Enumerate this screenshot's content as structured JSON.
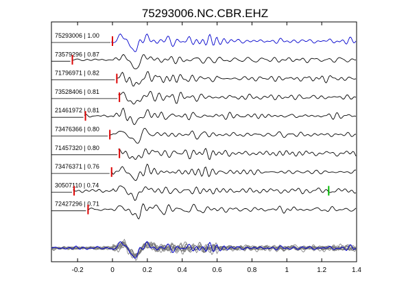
{
  "chart_data": {
    "type": "line",
    "title": "75293006.NC.CBR.EHZ",
    "xlabel": "",
    "ylabel": "",
    "xlim": [
      -0.35,
      1.4
    ],
    "xticks": [
      -0.2,
      0,
      0.2,
      0.4,
      0.6,
      0.8,
      1,
      1.2,
      1.4
    ],
    "xtick_labels": [
      "-0.2",
      "0",
      "0.2",
      "0.4",
      "0.6",
      "0.8",
      "1",
      "1.2",
      "1.4"
    ],
    "grid": false,
    "traces": [
      {
        "label": "75293006 | 1.00",
        "color": "#0000cc",
        "pick": 0.0,
        "pick_color": "#dd0000",
        "extra_pick": null
      },
      {
        "label": "73579296 | 0.87",
        "color": "#000000",
        "pick": -0.23,
        "pick_color": "#dd0000",
        "extra_pick": null
      },
      {
        "label": "71796971 | 0.82",
        "color": "#000000",
        "pick": 0.025,
        "pick_color": "#dd0000",
        "extra_pick": null
      },
      {
        "label": "73528406 | 0.81",
        "color": "#000000",
        "pick": 0.04,
        "pick_color": "#dd0000",
        "extra_pick": null
      },
      {
        "label": "21461972 | 0.81",
        "color": "#000000",
        "pick": -0.155,
        "pick_color": "#dd0000",
        "extra_pick": null
      },
      {
        "label": "73476366 | 0.80",
        "color": "#000000",
        "pick": -0.015,
        "pick_color": "#dd0000",
        "extra_pick": null
      },
      {
        "label": "71457320 | 0.80",
        "color": "#000000",
        "pick": 0.04,
        "pick_color": "#dd0000",
        "extra_pick": null
      },
      {
        "label": "73476371 | 0.76",
        "color": "#000000",
        "pick": -0.005,
        "pick_color": "#dd0000",
        "extra_pick": null
      },
      {
        "label": "30507110 | 0.74",
        "color": "#000000",
        "pick": -0.22,
        "pick_color": "#dd0000",
        "extra_pick": {
          "x": 1.24,
          "color": "#00bb00"
        }
      },
      {
        "label": "72427296 | 0.71",
        "color": "#000000",
        "pick": -0.14,
        "pick_color": "#dd0000",
        "extra_pick": null
      }
    ],
    "stack": {
      "colors": [
        "#777777",
        "#0000cc"
      ]
    }
  }
}
